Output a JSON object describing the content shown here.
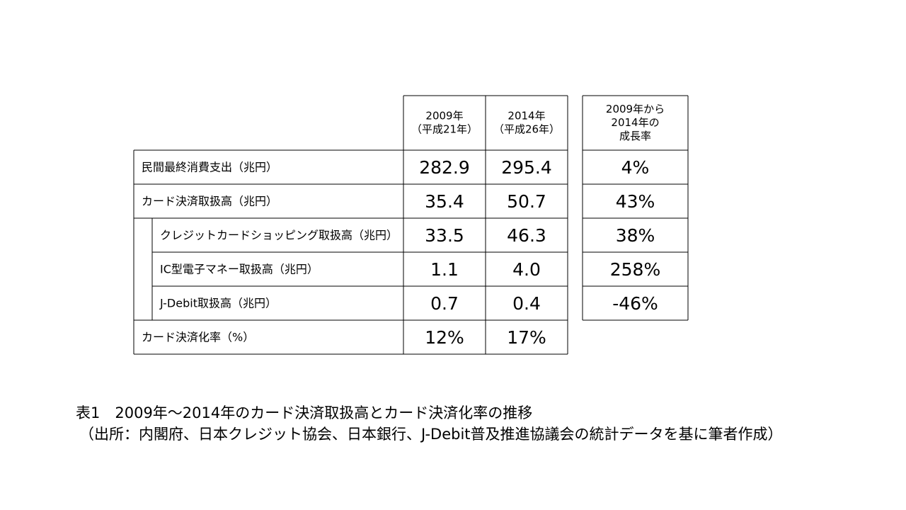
{
  "table": {
    "header": [
      [
        "2009年",
        "（平成21年）"
      ],
      [
        "2014年",
        "（平成26年）"
      ],
      [
        "2009年から",
        "2014年の",
        "成長率"
      ]
    ],
    "rows": [
      {
        "label": "民間最終消費支出（兆円）",
        "indent": false,
        "cells": [
          "282.9",
          "295.4",
          "4%"
        ]
      },
      {
        "label": "カード決済取扱高（兆円）",
        "indent": false,
        "cells": [
          "35.4",
          "50.7",
          "43%"
        ]
      },
      {
        "label": "クレジットカードショッピング取扱高（兆円）",
        "indent": true,
        "cells": [
          "33.5",
          "46.3",
          "38%"
        ]
      },
      {
        "label": "IC型電子マネー取扱高（兆円）",
        "indent": true,
        "cells": [
          "1.1",
          "4.0",
          "258%"
        ]
      },
      {
        "label": "J-Debit取扱高（兆円）",
        "indent": true,
        "cells": [
          "0.7",
          "0.4",
          "-46%"
        ]
      },
      {
        "label": "カード決済化率（%）",
        "indent": false,
        "cells": [
          "12%",
          "17%"
        ]
      }
    ]
  },
  "caption": {
    "title": "表1　2009年～2014年のカード決済取扱高とカード決済化率の推移",
    "source": "（出所：内閣府、日本クレジット協会、日本銀行、J-Debit普及推進協議会の統計データを基に筆者作成）"
  }
}
